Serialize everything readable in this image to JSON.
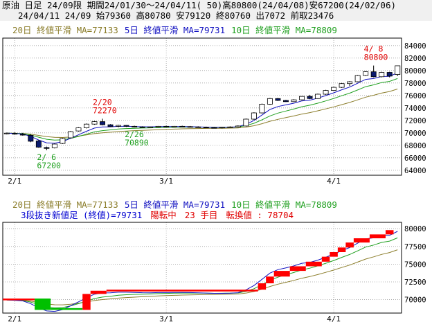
{
  "header": {
    "line1": "原油 日足 24/09限 期間24/01/30～24/04/11( 50)高80800(24/04/08)安67200(24/02/06)",
    "line2": "24/04/11 24/09 始79360 高80780 安79120 終80760 出7072 前取23476"
  },
  "colors": {
    "ma20": "#8b7d2a",
    "ma5": "#1010c0",
    "ma10": "#20a020",
    "up": "#ff0000",
    "down": "#00c000",
    "label_red": "#e00000",
    "label_green": "#20a020",
    "text_blue": "#0000d0",
    "grid": "#a0a0a0",
    "frame": "#000000"
  },
  "chart_data": [
    {
      "type": "candlestick",
      "legend": [
        {
          "text": "20日 終値平滑 MA=77133",
          "color": "ma20"
        },
        {
          "text": "5日 終値平滑 MA=79731",
          "color": "ma5"
        },
        {
          "text": "10日 終値平滑 MA=78809",
          "color": "ma10"
        }
      ],
      "y_ticks": [
        64000,
        66000,
        68000,
        70000,
        72000,
        74000,
        76000,
        78000,
        80000,
        82000,
        84000
      ],
      "ylim": [
        63200,
        85200
      ],
      "x_ticks": [
        {
          "label": "2/1",
          "index": 1
        },
        {
          "label": "3/1",
          "index": 20
        },
        {
          "label": "4/1",
          "index": 41
        }
      ],
      "x_count": 50,
      "annotations": [
        {
          "lines": [
            "4/ 8",
            "80800"
          ],
          "index": 46,
          "value": 80800,
          "color": "label_red",
          "pos": "above"
        },
        {
          "lines": [
            "2/20",
            "72270"
          ],
          "index": 12,
          "value": 72270,
          "color": "label_red",
          "pos": "above"
        },
        {
          "lines": [
            "2/26",
            "70890"
          ],
          "index": 16,
          "value": 70890,
          "color": "label_green",
          "pos": "below"
        },
        {
          "lines": [
            "2/ 6",
            "67200"
          ],
          "index": 5,
          "value": 67200,
          "color": "label_green",
          "pos": "below"
        }
      ],
      "candles": [
        {
          "o": 69850,
          "h": 70050,
          "l": 69750,
          "c": 69950
        },
        {
          "o": 69900,
          "h": 70100,
          "l": 69700,
          "c": 69800
        },
        {
          "o": 69750,
          "h": 70000,
          "l": 69550,
          "c": 69650
        },
        {
          "o": 69600,
          "h": 69800,
          "l": 68500,
          "c": 68650
        },
        {
          "o": 68700,
          "h": 68850,
          "l": 67600,
          "c": 67700
        },
        {
          "o": 67650,
          "h": 67800,
          "l": 67200,
          "c": 67500
        },
        {
          "o": 67600,
          "h": 68300,
          "l": 67500,
          "c": 68200
        },
        {
          "o": 68300,
          "h": 69200,
          "l": 68200,
          "c": 69100
        },
        {
          "o": 69200,
          "h": 70300,
          "l": 69100,
          "c": 70200
        },
        {
          "o": 70300,
          "h": 70900,
          "l": 70200,
          "c": 70800
        },
        {
          "o": 70800,
          "h": 71500,
          "l": 70700,
          "c": 71400
        },
        {
          "o": 71400,
          "h": 71900,
          "l": 71300,
          "c": 71800
        },
        {
          "o": 71800,
          "h": 72270,
          "l": 71200,
          "c": 71300
        },
        {
          "o": 71300,
          "h": 71400,
          "l": 70950,
          "c": 71000
        },
        {
          "o": 71050,
          "h": 71300,
          "l": 70900,
          "c": 71200
        },
        {
          "o": 71200,
          "h": 71250,
          "l": 70950,
          "c": 71050
        },
        {
          "o": 71050,
          "h": 71150,
          "l": 70890,
          "c": 70950
        },
        {
          "o": 70950,
          "h": 71050,
          "l": 70850,
          "c": 70900
        },
        {
          "o": 70900,
          "h": 71000,
          "l": 70850,
          "c": 70950
        },
        {
          "o": 70950,
          "h": 71100,
          "l": 70900,
          "c": 71050
        },
        {
          "o": 71050,
          "h": 71150,
          "l": 70950,
          "c": 71000
        },
        {
          "o": 71000,
          "h": 71100,
          "l": 70950,
          "c": 71050
        },
        {
          "o": 71050,
          "h": 71150,
          "l": 70950,
          "c": 71000
        },
        {
          "o": 71000,
          "h": 71100,
          "l": 70900,
          "c": 70950
        },
        {
          "o": 70950,
          "h": 71050,
          "l": 70850,
          "c": 70900
        },
        {
          "o": 70900,
          "h": 71000,
          "l": 70800,
          "c": 70850
        },
        {
          "o": 70850,
          "h": 70950,
          "l": 70750,
          "c": 70800
        },
        {
          "o": 70800,
          "h": 70950,
          "l": 70700,
          "c": 70900
        },
        {
          "o": 70900,
          "h": 71050,
          "l": 70800,
          "c": 70950
        },
        {
          "o": 70950,
          "h": 71200,
          "l": 70850,
          "c": 71100
        },
        {
          "o": 71100,
          "h": 72300,
          "l": 71000,
          "c": 72200
        },
        {
          "o": 72200,
          "h": 73300,
          "l": 72100,
          "c": 73200
        },
        {
          "o": 73200,
          "h": 74700,
          "l": 73100,
          "c": 74600
        },
        {
          "o": 74600,
          "h": 75600,
          "l": 74500,
          "c": 75500
        },
        {
          "o": 75500,
          "h": 75600,
          "l": 75100,
          "c": 75200
        },
        {
          "o": 75200,
          "h": 75300,
          "l": 74950,
          "c": 75000
        },
        {
          "o": 75000,
          "h": 75400,
          "l": 74950,
          "c": 75300
        },
        {
          "o": 75300,
          "h": 75900,
          "l": 75200,
          "c": 75850
        },
        {
          "o": 75850,
          "h": 76100,
          "l": 75400,
          "c": 75500
        },
        {
          "o": 75500,
          "h": 76300,
          "l": 75450,
          "c": 76200
        },
        {
          "o": 76200,
          "h": 76900,
          "l": 76100,
          "c": 76800
        },
        {
          "o": 76800,
          "h": 77400,
          "l": 76700,
          "c": 77300
        },
        {
          "o": 77300,
          "h": 78000,
          "l": 77200,
          "c": 77900
        },
        {
          "o": 77900,
          "h": 78300,
          "l": 77500,
          "c": 78200
        },
        {
          "o": 78200,
          "h": 79300,
          "l": 78100,
          "c": 79200
        },
        {
          "o": 79200,
          "h": 79900,
          "l": 79100,
          "c": 79800
        },
        {
          "o": 79800,
          "h": 80800,
          "l": 78900,
          "c": 79000
        },
        {
          "o": 79000,
          "h": 79800,
          "l": 78900,
          "c": 79700
        },
        {
          "o": 79700,
          "h": 79800,
          "l": 78900,
          "c": 79100
        },
        {
          "o": 79360,
          "h": 80780,
          "l": 79120,
          "c": 80760
        }
      ]
    },
    {
      "type": "three-line-break",
      "legend": [
        {
          "text": "20日 終値平滑 MA=77133",
          "color": "ma20"
        },
        {
          "text": "5日 終値平滑 MA=79731",
          "color": "ma5"
        },
        {
          "text": "10日 終値平滑 MA=78809",
          "color": "ma10"
        }
      ],
      "info": [
        {
          "text": "3段抜き新値足 (終値)=79731",
          "color": "text_blue"
        },
        {
          "text": "陽転中",
          "color": "label_red"
        },
        {
          "text": "23 手目",
          "color": "label_red"
        },
        {
          "text": "転換値 : 78704",
          "color": "label_red"
        }
      ],
      "y_ticks": [
        70000,
        72500,
        75000,
        77500,
        80000
      ],
      "ylim": [
        68100,
        80900
      ],
      "x_ticks": [
        {
          "label": "2/1",
          "index": 1
        },
        {
          "label": "3/1",
          "index": 20
        },
        {
          "label": "4/1",
          "index": 41
        }
      ],
      "x_count": 50,
      "bricks": [
        {
          "s": 0,
          "e": 4,
          "lo": 69900,
          "hi": 70150,
          "up": true
        },
        {
          "s": 4,
          "e": 6,
          "lo": 68550,
          "hi": 70150,
          "up": false
        },
        {
          "s": 6,
          "e": 10,
          "lo": 68550,
          "hi": 68800,
          "up": false
        },
        {
          "s": 10,
          "e": 11,
          "lo": 68550,
          "hi": 70800,
          "up": true
        },
        {
          "s": 11,
          "e": 13,
          "lo": 70800,
          "hi": 71250,
          "up": true
        },
        {
          "s": 13,
          "e": 32,
          "lo": 71150,
          "hi": 71400,
          "up": true
        },
        {
          "s": 32,
          "e": 33,
          "lo": 71400,
          "hi": 72300,
          "up": true
        },
        {
          "s": 33,
          "e": 34,
          "lo": 72300,
          "hi": 73250,
          "up": true
        },
        {
          "s": 34,
          "e": 36,
          "lo": 73250,
          "hi": 74050,
          "up": true
        },
        {
          "s": 36,
          "e": 38,
          "lo": 74050,
          "hi": 74700,
          "up": true
        },
        {
          "s": 38,
          "e": 40,
          "lo": 74700,
          "hi": 75350,
          "up": true
        },
        {
          "s": 40,
          "e": 41,
          "lo": 75350,
          "hi": 76050,
          "up": true
        },
        {
          "s": 41,
          "e": 42,
          "lo": 76050,
          "hi": 76700,
          "up": true
        },
        {
          "s": 42,
          "e": 43,
          "lo": 76700,
          "hi": 77350,
          "up": true
        },
        {
          "s": 43,
          "e": 44,
          "lo": 77350,
          "hi": 78050,
          "up": true
        },
        {
          "s": 44,
          "e": 46,
          "lo": 78050,
          "hi": 78650,
          "up": true
        },
        {
          "s": 46,
          "e": 48,
          "lo": 78650,
          "hi": 79200,
          "up": true
        },
        {
          "s": 48,
          "e": 49,
          "lo": 79200,
          "hi": 79800,
          "up": true
        }
      ]
    }
  ]
}
